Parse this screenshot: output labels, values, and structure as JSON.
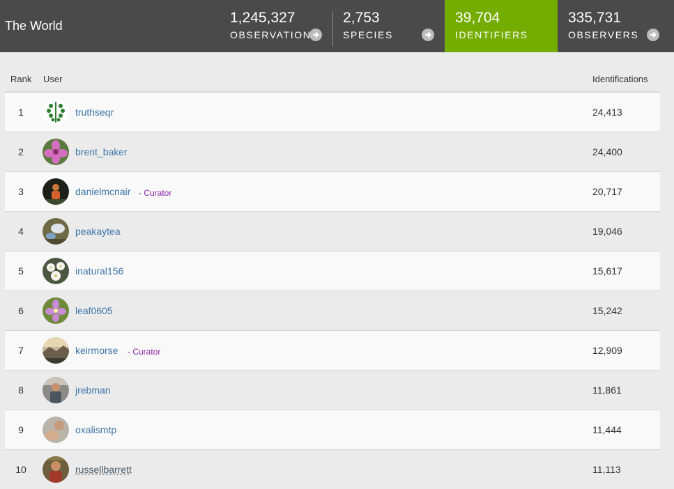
{
  "header": {
    "place": "The World",
    "stats": [
      {
        "number": "1,245,327",
        "label": "OBSERVATIONS",
        "active": false
      },
      {
        "number": "2,753",
        "label": "SPECIES",
        "active": false
      },
      {
        "number": "39,704",
        "label": "IDENTIFIERS",
        "active": true
      },
      {
        "number": "335,731",
        "label": "OBSERVERS",
        "active": false
      }
    ]
  },
  "table": {
    "columns": {
      "rank": "Rank",
      "user": "User",
      "count": "Identifications"
    },
    "rows": [
      {
        "rank": "1",
        "user": "truthseqr",
        "curator": "",
        "count": "24,413",
        "avatar": "plant-logo"
      },
      {
        "rank": "2",
        "user": "brent_baker",
        "curator": "",
        "count": "24,400",
        "avatar": "pink-flower"
      },
      {
        "rank": "3",
        "user": "danielmcnair",
        "curator": "- Curator",
        "count": "20,717",
        "avatar": "person-dark"
      },
      {
        "rank": "4",
        "user": "peakaytea",
        "curator": "",
        "count": "19,046",
        "avatar": "mushroom"
      },
      {
        "rank": "5",
        "user": "inatural156",
        "curator": "",
        "count": "15,617",
        "avatar": "white-flowers"
      },
      {
        "rank": "6",
        "user": "leaf0605",
        "curator": "",
        "count": "15,242",
        "avatar": "purple-flower"
      },
      {
        "rank": "7",
        "user": "keirmorse",
        "curator": "- Curator",
        "count": "12,909",
        "avatar": "landscape"
      },
      {
        "rank": "8",
        "user": "jrebman",
        "curator": "",
        "count": "11,861",
        "avatar": "person-outdoor"
      },
      {
        "rank": "9",
        "user": "oxalismtp",
        "curator": "",
        "count": "11,444",
        "avatar": "hand"
      },
      {
        "rank": "10",
        "user": "russellbarrett",
        "curator": "",
        "count": "11,113",
        "avatar": "person-red"
      }
    ]
  }
}
